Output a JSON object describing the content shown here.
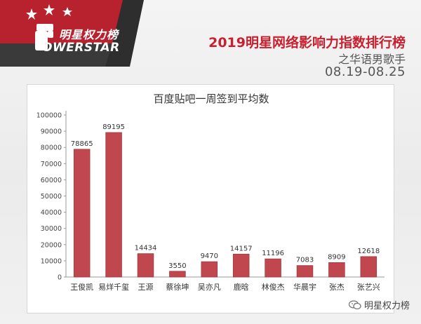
{
  "brand": {
    "logo_text_cn": "明星权力榜",
    "logo_text_en": "OWERSTAR"
  },
  "header": {
    "title": "2019明星网络影响力指数排行榜",
    "subtitle": "之华语男歌手",
    "date_range": "08.19-08.25"
  },
  "watermark": {
    "text": "明星权力榜",
    "icon": "wechat-icon"
  },
  "colors": {
    "accent": "#c8202f",
    "bar": "#c0474d",
    "bar_edge": "#a23a40",
    "banner_dark": "#2e2e2e"
  },
  "chart_data": {
    "type": "bar",
    "title": "百度贴吧一周签到平均数",
    "categories": [
      "王俊凯",
      "易烊千玺",
      "王源",
      "蔡徐坤",
      "吴亦凡",
      "鹿晗",
      "林俊杰",
      "华晨宇",
      "张杰",
      "张艺兴"
    ],
    "values": [
      78865,
      89195,
      14434,
      3550,
      9470,
      14157,
      11196,
      7083,
      8909,
      12618
    ],
    "data_labels": [
      "78865",
      "89195",
      "14434",
      "3550",
      "9470",
      "14157",
      "11196",
      "7083",
      "8909",
      "12618"
    ],
    "ylim": [
      0,
      100000
    ],
    "yticks": [
      0,
      10000,
      20000,
      30000,
      40000,
      50000,
      60000,
      70000,
      80000,
      90000,
      100000
    ],
    "ytick_labels": [
      "0",
      "10000",
      "20000",
      "30000",
      "40000",
      "50000",
      "60000",
      "70000",
      "80000",
      "90000",
      "100000"
    ],
    "xlabel": "",
    "ylabel": "",
    "grid": false,
    "legend": false
  }
}
